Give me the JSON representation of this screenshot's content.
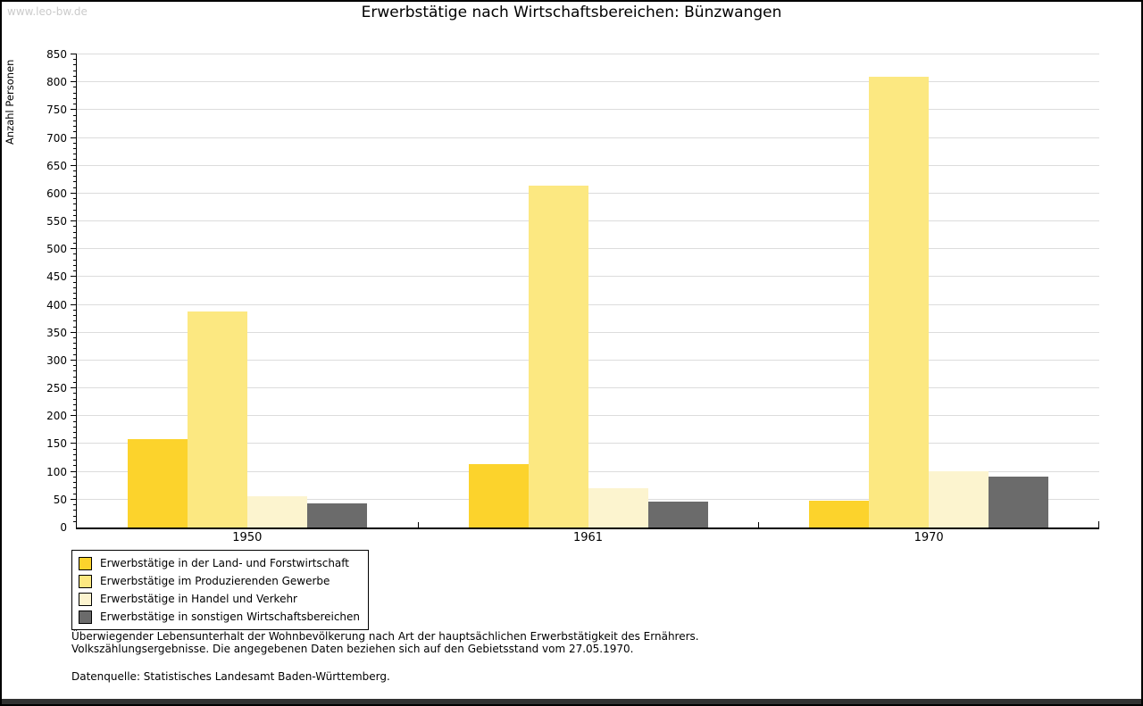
{
  "watermark": "www.leo-bw.de",
  "title": "Erwerbstätige nach Wirtschaftsbereichen: Bünzwangen",
  "chart_data": {
    "type": "bar",
    "title": "Erwerbstätige nach Wirtschaftsbereichen: Bünzwangen",
    "xlabel": "",
    "ylabel": "Anzahl Personen",
    "ylim": [
      0,
      850
    ],
    "ytick_step": 50,
    "minor_tick_step": 10,
    "grid": true,
    "legend_position": "bottom-left",
    "categories": [
      "1950",
      "1961",
      "1970"
    ],
    "series": [
      {
        "name": "Erwerbstätige in der Land- und Forstwirtschaft",
        "color": "#FCD32C",
        "values": [
          159,
          114,
          48
        ]
      },
      {
        "name": "Erwerbstätige im Produzierenden Gewerbe",
        "color": "#FCE881",
        "values": [
          388,
          614,
          810
        ]
      },
      {
        "name": "Erwerbstätige in Handel und Verkehr",
        "color": "#FCF4CF",
        "values": [
          57,
          70,
          101
        ]
      },
      {
        "name": "Erwerbstätige in sonstigen Wirtschaftsbereichen",
        "color": "#6B6B6B",
        "values": [
          44,
          46,
          92
        ]
      }
    ]
  },
  "footer": {
    "line1": "Überwiegender Lebensunterhalt der Wohnbevölkerung nach Art der hauptsächlichen Erwerbstätigkeit des Ernährers.",
    "line2": "Volkszählungsergebnisse. Die angegebenen Daten beziehen sich auf den Gebietsstand vom 27.05.1970.",
    "source": "Datenquelle: Statistisches Landesamt Baden-Württemberg."
  }
}
